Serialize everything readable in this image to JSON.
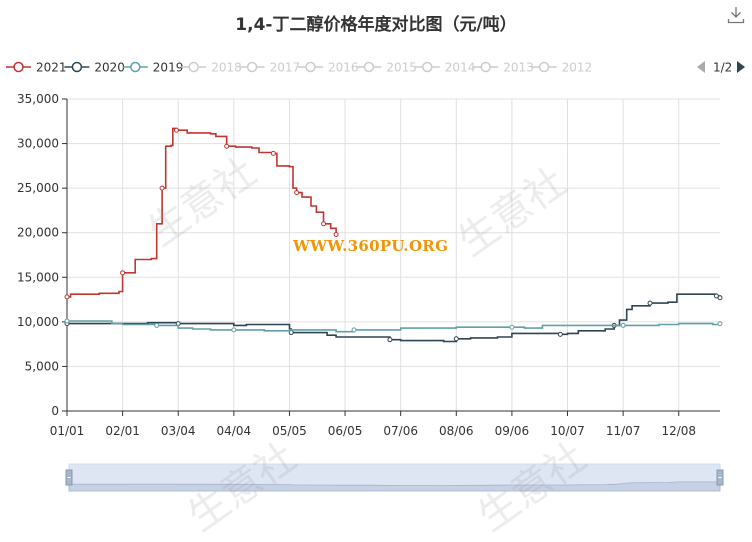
{
  "title": "1,4-丁二醇价格年度对比图（元/吨）",
  "watermark_text": "WWW.360PU.ORG",
  "watermark_logo": "生意社",
  "legend": {
    "items": [
      {
        "label": "2021",
        "color": "#c23531",
        "active": true
      },
      {
        "label": "2020",
        "color": "#2f4554",
        "active": true
      },
      {
        "label": "2019",
        "color": "#61a0a8",
        "active": true
      },
      {
        "label": "2018",
        "color": "#cccccc",
        "active": false
      },
      {
        "label": "2017",
        "color": "#cccccc",
        "active": false
      },
      {
        "label": "2016",
        "color": "#cccccc",
        "active": false
      },
      {
        "label": "2015",
        "color": "#cccccc",
        "active": false
      },
      {
        "label": "2014",
        "color": "#cccccc",
        "active": false
      },
      {
        "label": "2013",
        "color": "#cccccc",
        "active": false
      },
      {
        "label": "2012",
        "color": "#cccccc",
        "active": false
      }
    ],
    "page": "1/2"
  },
  "chart_data": {
    "type": "line",
    "title": "1,4-丁二醇价格年度对比图（元/吨）",
    "xlabel": "",
    "ylabel": "",
    "x_ticks": [
      "01/01",
      "02/01",
      "03/04",
      "04/04",
      "05/05",
      "06/05",
      "07/06",
      "08/06",
      "09/06",
      "10/07",
      "11/07",
      "12/08"
    ],
    "x_tick_days": [
      0,
      31,
      62,
      93,
      124,
      155,
      186,
      217,
      248,
      279,
      310,
      341
    ],
    "x_range_days": [
      0,
      364
    ],
    "y_ticks": [
      "0",
      "5,000",
      "10,000",
      "15,000",
      "20,000",
      "25,000",
      "30,000",
      "35,000"
    ],
    "ylim": [
      0,
      35000
    ],
    "series": [
      {
        "name": "2021",
        "color": "#c23531",
        "points": [
          [
            0,
            12800
          ],
          [
            2,
            13100
          ],
          [
            18,
            13200
          ],
          [
            29,
            13400
          ],
          [
            31,
            15500
          ],
          [
            38,
            17000
          ],
          [
            47,
            17100
          ],
          [
            50,
            21000
          ],
          [
            53,
            25000
          ],
          [
            55,
            29700
          ],
          [
            58,
            29800
          ],
          [
            59,
            31700
          ],
          [
            61,
            31500
          ],
          [
            67,
            31200
          ],
          [
            80,
            31100
          ],
          [
            83,
            30800
          ],
          [
            89,
            29700
          ],
          [
            94,
            29600
          ],
          [
            103,
            29500
          ],
          [
            107,
            29000
          ],
          [
            115,
            28900
          ],
          [
            117,
            27500
          ],
          [
            124,
            27400
          ],
          [
            126,
            25000
          ],
          [
            128,
            24500
          ],
          [
            131,
            24000
          ],
          [
            136,
            23000
          ],
          [
            139,
            22300
          ],
          [
            143,
            21000
          ],
          [
            147,
            20500
          ],
          [
            150,
            19800
          ]
        ]
      },
      {
        "name": "2020",
        "color": "#2f4554",
        "points": [
          [
            0,
            9800
          ],
          [
            31,
            9800
          ],
          [
            45,
            9900
          ],
          [
            55,
            9900
          ],
          [
            62,
            9800
          ],
          [
            93,
            9600
          ],
          [
            100,
            9700
          ],
          [
            124,
            9200
          ],
          [
            125,
            8800
          ],
          [
            145,
            8500
          ],
          [
            150,
            8300
          ],
          [
            170,
            8300
          ],
          [
            180,
            8000
          ],
          [
            186,
            7900
          ],
          [
            205,
            7900
          ],
          [
            210,
            7800
          ],
          [
            217,
            8100
          ],
          [
            225,
            8200
          ],
          [
            240,
            8300
          ],
          [
            248,
            8700
          ],
          [
            275,
            8600
          ],
          [
            279,
            8700
          ],
          [
            285,
            9000
          ],
          [
            300,
            9200
          ],
          [
            305,
            9600
          ],
          [
            308,
            10200
          ],
          [
            312,
            11400
          ],
          [
            315,
            11800
          ],
          [
            325,
            12100
          ],
          [
            335,
            12200
          ],
          [
            340,
            13100
          ],
          [
            357,
            13100
          ],
          [
            362,
            12900
          ],
          [
            364,
            12700
          ]
        ]
      },
      {
        "name": "2019",
        "color": "#61a0a8",
        "points": [
          [
            0,
            10100
          ],
          [
            20,
            10100
          ],
          [
            25,
            9800
          ],
          [
            31,
            9700
          ],
          [
            50,
            9600
          ],
          [
            62,
            9300
          ],
          [
            70,
            9200
          ],
          [
            80,
            9100
          ],
          [
            93,
            9100
          ],
          [
            110,
            9000
          ],
          [
            124,
            9100
          ],
          [
            150,
            8900
          ],
          [
            160,
            9100
          ],
          [
            186,
            9300
          ],
          [
            200,
            9300
          ],
          [
            217,
            9400
          ],
          [
            248,
            9400
          ],
          [
            255,
            9300
          ],
          [
            265,
            9600
          ],
          [
            279,
            9600
          ],
          [
            310,
            9600
          ],
          [
            330,
            9700
          ],
          [
            341,
            9800
          ],
          [
            360,
            9700
          ],
          [
            364,
            9800
          ]
        ]
      }
    ],
    "grid": true,
    "legend_position": "top",
    "datazoom": {
      "start": 0,
      "end": 100
    }
  }
}
